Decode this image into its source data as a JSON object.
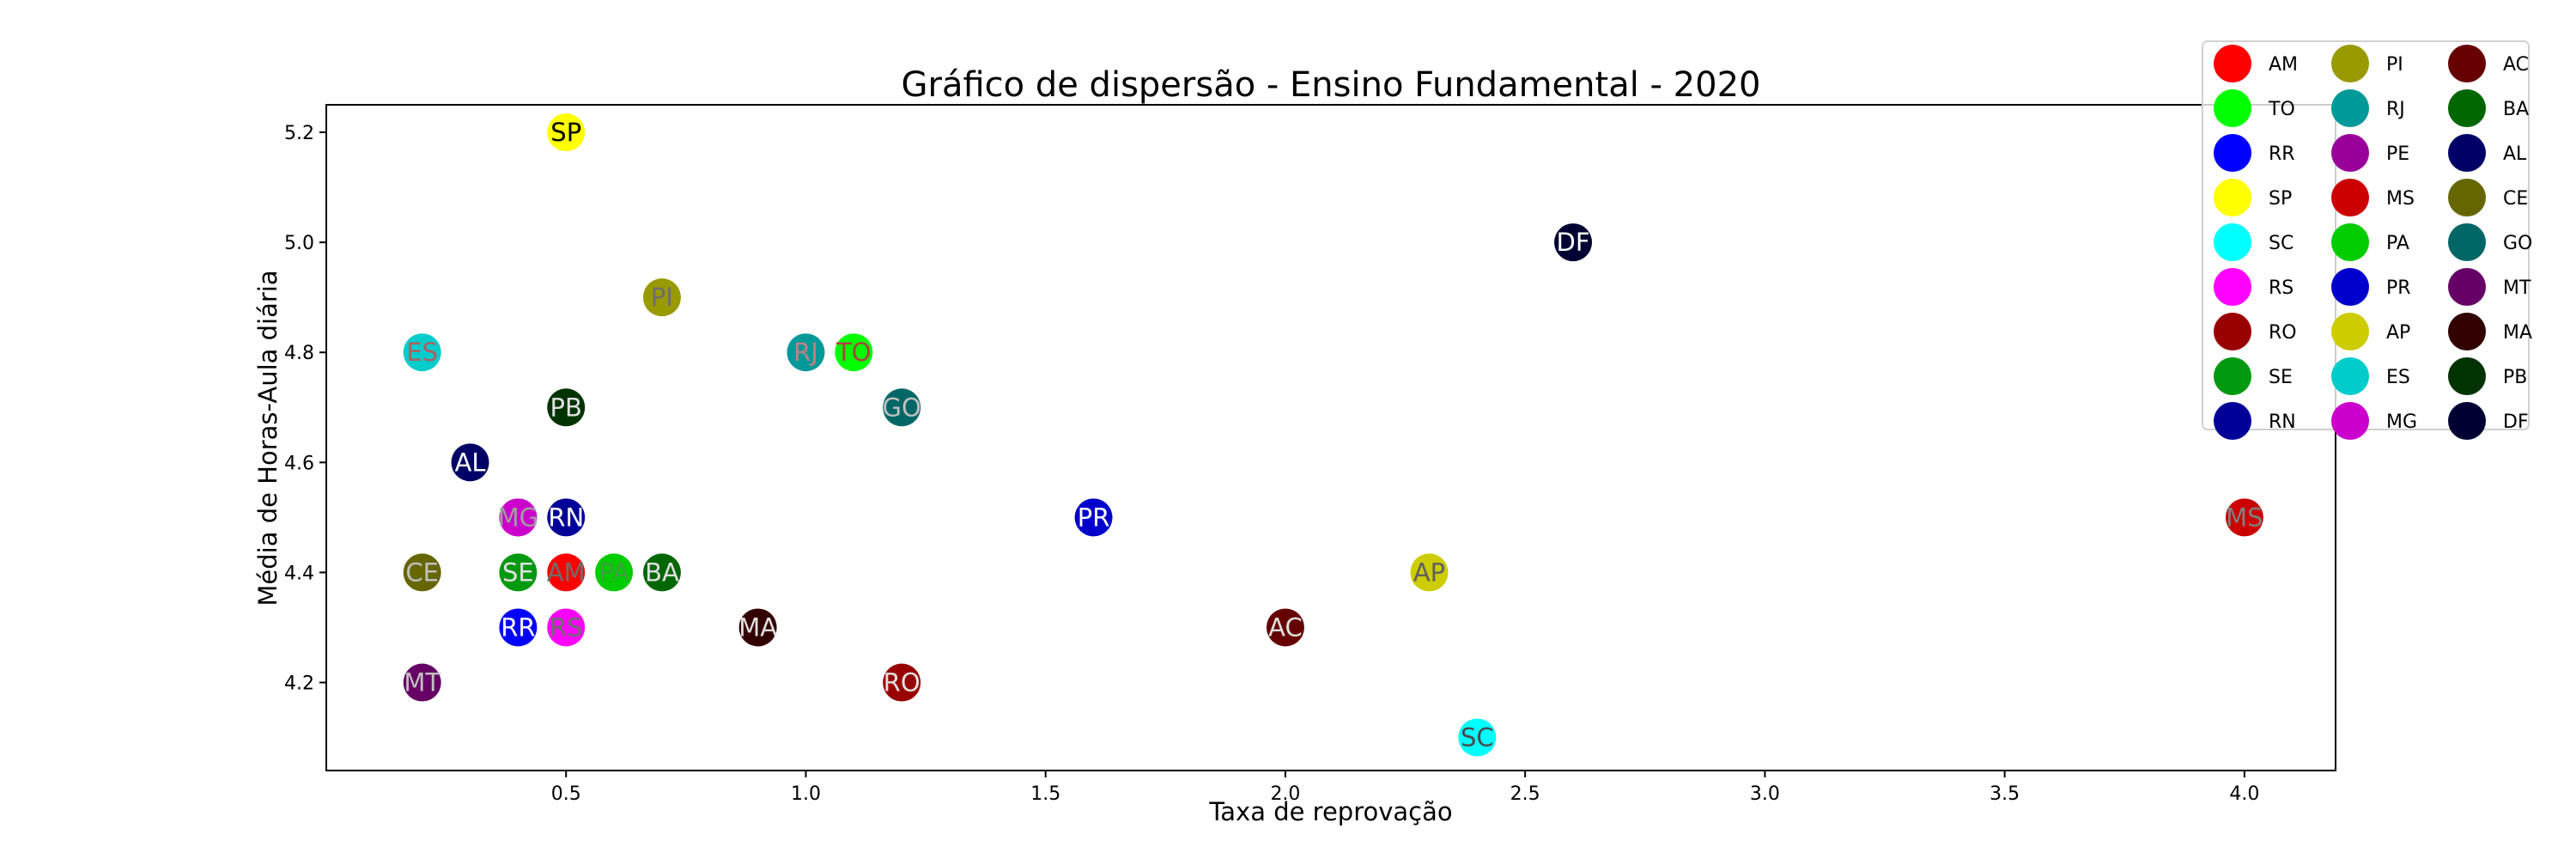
{
  "chart_data": {
    "type": "scatter",
    "title": "Gráfico de dispersão - Ensino Fundamental - 2020",
    "xlabel": "Taxa de reprovação",
    "ylabel": "Média de Horas-Aula diária",
    "xlim": [
      0.0,
      4.19
    ],
    "ylim": [
      4.04,
      5.25
    ],
    "xticks": [
      0.5,
      1.0,
      1.5,
      2.0,
      2.5,
      3.0,
      3.5,
      4.0
    ],
    "xtick_labels": [
      "0.5",
      "1.0",
      "1.5",
      "2.0",
      "2.5",
      "3.0",
      "3.5",
      "4.0"
    ],
    "yticks": [
      4.2,
      4.4,
      4.6,
      4.8,
      5.0,
      5.2
    ],
    "ytick_labels": [
      "4.2",
      "4.4",
      "4.6",
      "4.8",
      "5.0",
      "5.2"
    ],
    "grid": false,
    "legend_position": "top-right",
    "legend_columns": 3,
    "points": [
      {
        "label": "AM",
        "x": 0.5,
        "y": 4.4,
        "color": "#ff0000",
        "text_color": "#6e6e6e"
      },
      {
        "label": "TO",
        "x": 1.1,
        "y": 4.8,
        "color": "#00ff00",
        "text_color": "#b04040"
      },
      {
        "label": "RR",
        "x": 0.4,
        "y": 4.3,
        "color": "#0000ff",
        "text_color": "#ffffff"
      },
      {
        "label": "SP",
        "x": 0.5,
        "y": 5.2,
        "color": "#ffff00",
        "text_color": "#000000"
      },
      {
        "label": "SC",
        "x": 2.4,
        "y": 4.1,
        "color": "#00ffff",
        "text_color": "#4a4a4a"
      },
      {
        "label": "RS",
        "x": 0.5,
        "y": 4.3,
        "color": "#ff00ff",
        "text_color": "#6e6e6e"
      },
      {
        "label": "RO",
        "x": 1.2,
        "y": 4.2,
        "color": "#990000",
        "text_color": "#e0e0e0"
      },
      {
        "label": "SE",
        "x": 0.4,
        "y": 4.4,
        "color": "#00990f",
        "text_color": "#e0e0e0"
      },
      {
        "label": "RN",
        "x": 0.5,
        "y": 4.5,
        "color": "#000099",
        "text_color": "#ffffff"
      },
      {
        "label": "PI",
        "x": 0.7,
        "y": 4.9,
        "color": "#999900",
        "text_color": "#6e6e6e"
      },
      {
        "label": "RJ",
        "x": 1.0,
        "y": 4.8,
        "color": "#009999",
        "text_color": "#c08080"
      },
      {
        "label": "PE",
        "x": 0.4,
        "y": 4.5,
        "color": "#990099",
        "text_color": "#80c080"
      },
      {
        "label": "MS",
        "x": 4.0,
        "y": 4.5,
        "color": "#cc0000",
        "text_color": "#808080"
      },
      {
        "label": "PA",
        "x": 0.6,
        "y": 4.4,
        "color": "#00cc00",
        "text_color": "#40a040"
      },
      {
        "label": "PR",
        "x": 1.6,
        "y": 4.5,
        "color": "#0000cc",
        "text_color": "#ffffff"
      },
      {
        "label": "AP",
        "x": 2.3,
        "y": 4.4,
        "color": "#cccc00",
        "text_color": "#606060"
      },
      {
        "label": "ES",
        "x": 0.2,
        "y": 4.8,
        "color": "#00cccc",
        "text_color": "#b06060"
      },
      {
        "label": "MG",
        "x": 0.4,
        "y": 4.5,
        "color": "#cc00cc",
        "text_color": "#a0a0a0"
      },
      {
        "label": "AC",
        "x": 2.0,
        "y": 4.3,
        "color": "#660000",
        "text_color": "#e0e0e0"
      },
      {
        "label": "BA",
        "x": 0.7,
        "y": 4.4,
        "color": "#006600",
        "text_color": "#e0e0e0"
      },
      {
        "label": "AL",
        "x": 0.3,
        "y": 4.6,
        "color": "#000066",
        "text_color": "#ffffff"
      },
      {
        "label": "CE",
        "x": 0.2,
        "y": 4.4,
        "color": "#666600",
        "text_color": "#c0c0c0"
      },
      {
        "label": "GO",
        "x": 1.2,
        "y": 4.7,
        "color": "#006666",
        "text_color": "#c0c0c0"
      },
      {
        "label": "MT",
        "x": 0.2,
        "y": 4.2,
        "color": "#660066",
        "text_color": "#c0c0c0"
      },
      {
        "label": "MA",
        "x": 0.9,
        "y": 4.3,
        "color": "#330000",
        "text_color": "#e0e0e0"
      },
      {
        "label": "PB",
        "x": 0.5,
        "y": 4.7,
        "color": "#003300",
        "text_color": "#e0e0e0"
      },
      {
        "label": "DF",
        "x": 2.6,
        "y": 5.0,
        "color": "#000033",
        "text_color": "#ffffff"
      }
    ]
  }
}
